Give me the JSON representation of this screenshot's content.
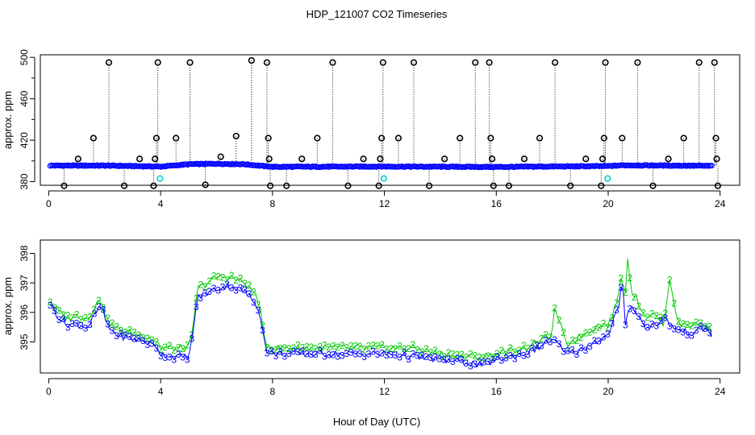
{
  "figure": {
    "title": "HDP_121007  CO2 Timeseries",
    "xlabel": "Hour of Day (UTC)"
  },
  "colors": {
    "black": "#000000",
    "blue": "#0000ff",
    "green": "#00c800",
    "cyan": "#00d0d0"
  },
  "chart_data": [
    {
      "type": "scatter",
      "panel": "top",
      "title": "",
      "xlabel": "",
      "ylabel": "approx. ppm",
      "xlim": [
        -0.3,
        24.7
      ],
      "ylim": [
        376.5,
        502.5
      ],
      "xticks": [
        0,
        4,
        8,
        12,
        16,
        20,
        24
      ],
      "yticks": [
        380,
        420,
        460,
        500
      ],
      "baseline_profile": {
        "x": [
          0.05,
          2,
          3.5,
          4,
          5,
          6,
          7,
          7.7,
          8,
          12,
          16,
          20,
          20.5,
          22,
          23.7
        ],
        "y": [
          395.5,
          395.5,
          394.8,
          394.5,
          396.8,
          397.3,
          396.8,
          395.0,
          394.3,
          394.6,
          394.2,
          395.0,
          395.8,
          395.6,
          395.2
        ]
      },
      "outliers_black": [
        {
          "x": 0.55,
          "y": 376
        },
        {
          "x": 1.05,
          "y": 402
        },
        {
          "x": 1.6,
          "y": 422
        },
        {
          "x": 2.15,
          "y": 495
        },
        {
          "x": 2.7,
          "y": 376
        },
        {
          "x": 3.25,
          "y": 402
        },
        {
          "x": 3.75,
          "y": 376
        },
        {
          "x": 3.8,
          "y": 402
        },
        {
          "x": 3.85,
          "y": 422
        },
        {
          "x": 3.9,
          "y": 495
        },
        {
          "x": 4.55,
          "y": 422
        },
        {
          "x": 5.05,
          "y": 495
        },
        {
          "x": 5.6,
          "y": 377
        },
        {
          "x": 6.15,
          "y": 404
        },
        {
          "x": 6.7,
          "y": 424
        },
        {
          "x": 7.25,
          "y": 497
        },
        {
          "x": 7.8,
          "y": 495
        },
        {
          "x": 7.85,
          "y": 422
        },
        {
          "x": 7.88,
          "y": 402
        },
        {
          "x": 7.92,
          "y": 376
        },
        {
          "x": 8.5,
          "y": 376
        },
        {
          "x": 9.05,
          "y": 402
        },
        {
          "x": 9.6,
          "y": 422
        },
        {
          "x": 10.15,
          "y": 495
        },
        {
          "x": 10.7,
          "y": 376
        },
        {
          "x": 11.25,
          "y": 402
        },
        {
          "x": 11.8,
          "y": 376
        },
        {
          "x": 11.85,
          "y": 402
        },
        {
          "x": 11.9,
          "y": 422
        },
        {
          "x": 11.95,
          "y": 495
        },
        {
          "x": 12.5,
          "y": 422
        },
        {
          "x": 13.05,
          "y": 495
        },
        {
          "x": 13.6,
          "y": 376
        },
        {
          "x": 14.15,
          "y": 402
        },
        {
          "x": 14.7,
          "y": 422
        },
        {
          "x": 15.25,
          "y": 495
        },
        {
          "x": 15.75,
          "y": 495
        },
        {
          "x": 15.8,
          "y": 422
        },
        {
          "x": 15.85,
          "y": 402
        },
        {
          "x": 15.9,
          "y": 376
        },
        {
          "x": 16.45,
          "y": 376
        },
        {
          "x": 17.0,
          "y": 402
        },
        {
          "x": 17.55,
          "y": 422
        },
        {
          "x": 18.1,
          "y": 495
        },
        {
          "x": 18.65,
          "y": 376
        },
        {
          "x": 19.2,
          "y": 402
        },
        {
          "x": 19.75,
          "y": 376
        },
        {
          "x": 19.8,
          "y": 402
        },
        {
          "x": 19.85,
          "y": 422
        },
        {
          "x": 19.9,
          "y": 495
        },
        {
          "x": 20.5,
          "y": 422
        },
        {
          "x": 21.05,
          "y": 495
        },
        {
          "x": 21.6,
          "y": 376
        },
        {
          "x": 22.15,
          "y": 402
        },
        {
          "x": 22.7,
          "y": 422
        },
        {
          "x": 23.25,
          "y": 495
        },
        {
          "x": 23.8,
          "y": 495
        },
        {
          "x": 23.85,
          "y": 422
        },
        {
          "x": 23.88,
          "y": 402
        },
        {
          "x": 23.92,
          "y": 376
        }
      ],
      "cyan_points": [
        {
          "x": 3.98,
          "y": 383
        },
        {
          "x": 11.98,
          "y": 383
        },
        {
          "x": 19.98,
          "y": 383
        }
      ]
    },
    {
      "type": "line",
      "panel": "bottom",
      "title": "",
      "xlabel": "Hour of Day (UTC)",
      "ylabel": "approx. ppm",
      "xlim": [
        -0.3,
        24.7
      ],
      "ylim": [
        393.95,
        398.45
      ],
      "xticks": [
        0,
        4,
        8,
        12,
        16,
        20,
        24
      ],
      "yticks": [
        395,
        396,
        397,
        398
      ],
      "point_labels": {
        "series3": "3",
        "series2": "2"
      },
      "series": [
        {
          "name": "3",
          "color": "blue",
          "x": [
            0.05,
            0.3,
            0.6,
            1.0,
            1.4,
            1.7,
            1.9,
            2.1,
            2.5,
            3.0,
            3.5,
            3.9,
            4.0,
            4.5,
            5.0,
            5.15,
            5.3,
            6.0,
            6.5,
            7.0,
            7.4,
            7.55,
            7.65,
            7.8,
            8.0,
            10.0,
            12.0,
            13.0,
            14.0,
            15.0,
            15.5,
            16.0,
            17.0,
            17.5,
            18.0,
            18.5,
            19.0,
            19.5,
            20.0,
            20.2,
            20.4,
            20.5,
            20.6,
            20.8,
            21.0,
            21.3,
            21.7,
            22.0,
            22.2,
            22.5,
            23.0,
            23.5,
            23.7
          ],
          "y": [
            396.3,
            395.9,
            395.6,
            395.6,
            395.5,
            396.0,
            396.2,
            395.5,
            395.2,
            395.1,
            395.0,
            394.8,
            394.6,
            394.5,
            394.5,
            395.2,
            396.5,
            396.8,
            396.9,
            396.7,
            396.3,
            396.0,
            395.3,
            394.7,
            394.6,
            394.6,
            394.6,
            394.5,
            394.4,
            394.3,
            394.2,
            394.4,
            394.6,
            394.8,
            395.1,
            394.6,
            394.7,
            395.0,
            395.2,
            395.8,
            396.2,
            397.2,
            395.6,
            396.3,
            396.0,
            395.5,
            395.6,
            395.8,
            395.6,
            395.4,
            395.3,
            395.5,
            395.2
          ]
        },
        {
          "name": "2",
          "color": "green",
          "x": [
            0.05,
            0.3,
            0.6,
            1.0,
            1.4,
            1.7,
            1.9,
            2.1,
            2.5,
            3.0,
            3.5,
            3.9,
            4.0,
            4.5,
            5.0,
            5.15,
            5.3,
            6.0,
            6.5,
            7.0,
            7.4,
            7.55,
            7.65,
            7.8,
            8.0,
            10.0,
            12.0,
            13.0,
            14.0,
            15.0,
            15.5,
            16.0,
            17.0,
            17.5,
            18.0,
            18.1,
            18.5,
            19.0,
            19.5,
            20.0,
            20.2,
            20.4,
            20.5,
            20.6,
            20.7,
            20.8,
            21.0,
            21.3,
            21.7,
            22.0,
            22.2,
            22.5,
            23.0,
            23.5,
            23.7
          ],
          "y": [
            396.4,
            396.1,
            395.8,
            395.9,
            395.8,
            396.3,
            396.4,
            395.7,
            395.4,
            395.3,
            395.2,
            395.0,
            394.8,
            394.8,
            394.8,
            395.3,
            396.8,
            397.2,
            397.2,
            397.0,
            396.6,
            396.2,
            395.4,
            394.9,
            394.8,
            394.8,
            394.8,
            394.8,
            394.6,
            394.5,
            394.5,
            394.6,
            394.8,
            395.0,
            395.3,
            396.2,
            394.9,
            395.2,
            395.5,
            395.6,
            396.0,
            396.8,
            397.3,
            396.5,
            398.0,
            396.8,
            396.5,
            395.9,
            395.9,
            395.6,
            397.2,
            395.6,
            395.6,
            395.6,
            395.3
          ]
        }
      ]
    }
  ]
}
